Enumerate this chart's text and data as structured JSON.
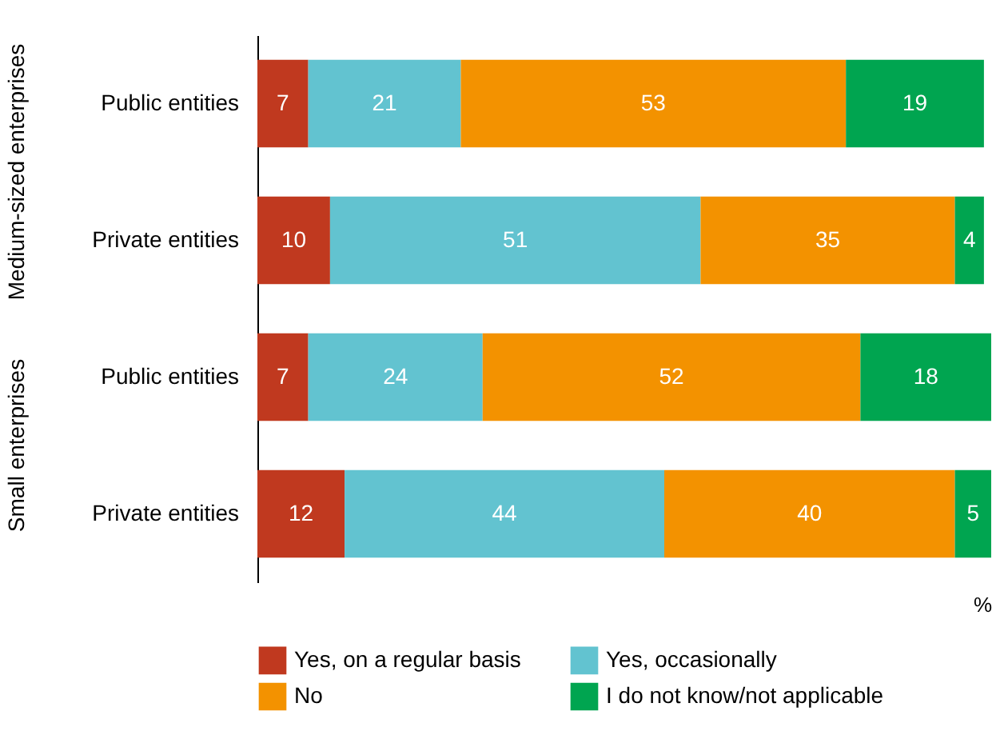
{
  "chart_data": {
    "type": "bar",
    "orientation": "horizontal",
    "stacked": true,
    "data_labels": true,
    "legend": "bottom",
    "xlabel": "%",
    "categories": [
      "Public entities",
      "Private entities",
      "Public entities",
      "Private entities"
    ],
    "annotations": [
      "Medium-sized enterprises",
      "Small enterprises"
    ],
    "series": [
      {
        "name": "Yes, on a regular basis",
        "color": "#c0391f",
        "values": [
          7,
          10,
          7,
          12
        ]
      },
      {
        "name": "Yes, occasionally",
        "color": "#62c3d0",
        "values": [
          21,
          51,
          24,
          44
        ]
      },
      {
        "name": "No",
        "color": "#f39200",
        "values": [
          53,
          35,
          52,
          40
        ]
      },
      {
        "name": "I do not know/not applicable",
        "color": "#00a550",
        "values": [
          19,
          4,
          18,
          5
        ]
      }
    ]
  }
}
